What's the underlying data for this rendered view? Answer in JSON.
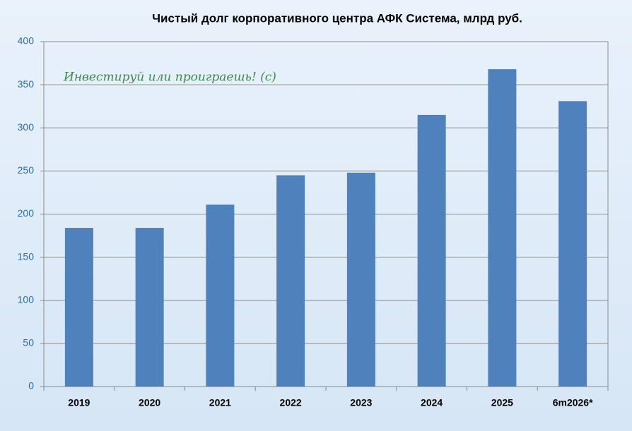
{
  "chart_data": {
    "type": "bar",
    "title": "Чистый долг корпоративного центра АФК Система, млрд руб.",
    "annotation": "Инвестируй или проиграешь! (с)",
    "categories": [
      "2019",
      "2020",
      "2021",
      "2022",
      "2023",
      "2024",
      "2025",
      "6m2026*"
    ],
    "values": [
      184,
      184,
      211,
      245,
      248,
      315,
      368,
      331
    ],
    "color": "#4f81bd",
    "ylim": [
      0,
      400
    ],
    "yticks": [
      0,
      50,
      100,
      150,
      200,
      250,
      300,
      350,
      400
    ],
    "grid": true
  }
}
